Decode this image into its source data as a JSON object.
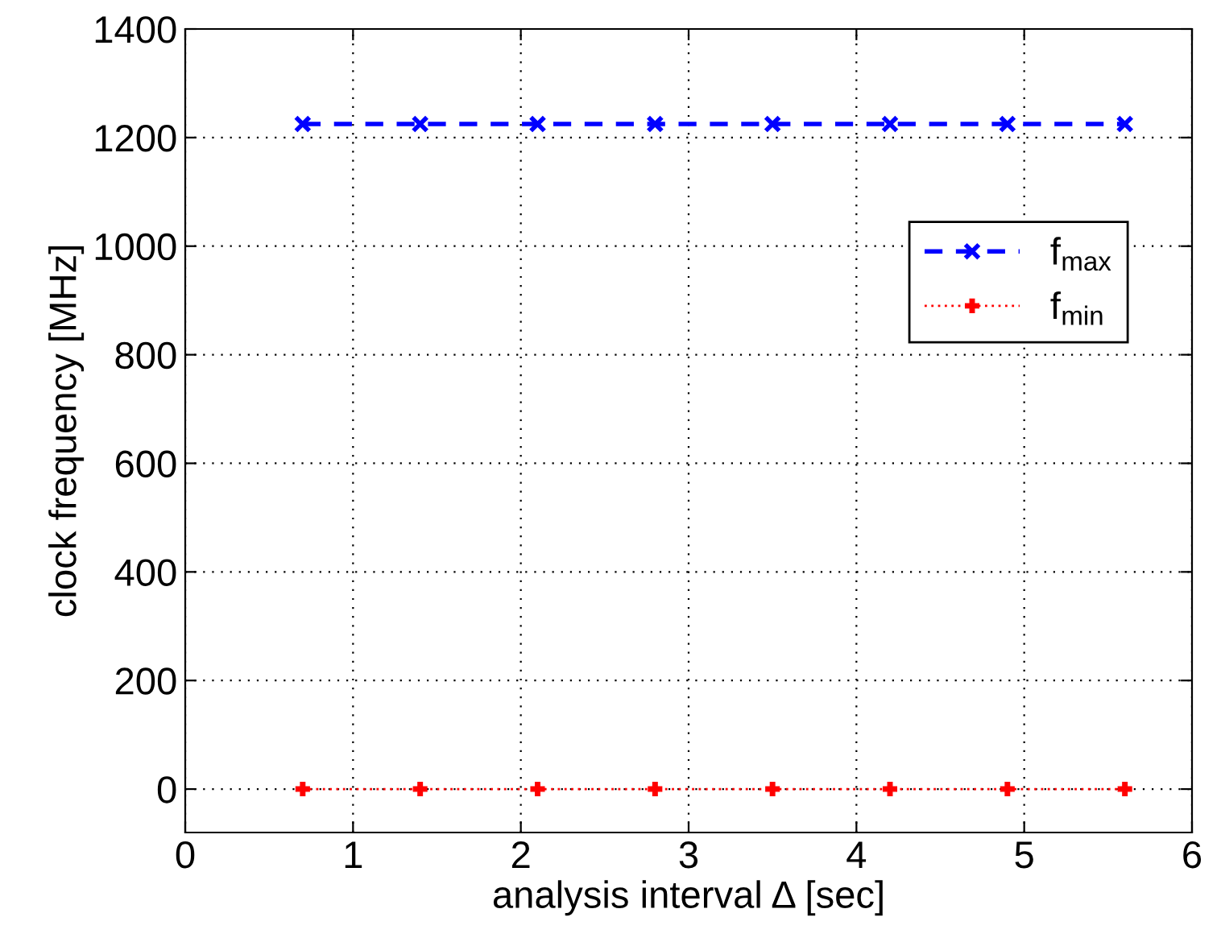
{
  "chart_data": {
    "type": "line",
    "xlabel": "analysis interval Δ [sec]",
    "ylabel": "clock frequency [MHz]",
    "x": [
      0.7,
      1.4,
      2.1,
      2.8,
      3.5,
      4.2,
      4.9,
      5.6
    ],
    "series": [
      {
        "name": "f$_{max}$",
        "color": "#0000ff",
        "values": [
          1225,
          1225,
          1225,
          1225,
          1225,
          1225,
          1225,
          1225
        ],
        "marker": "cross",
        "line_style": "dashed"
      },
      {
        "name": "f$_{min}$",
        "color": "#ff0000",
        "values": [
          0,
          0,
          0,
          0,
          0,
          0,
          0,
          0
        ],
        "marker": "plus",
        "line_style": "dotted"
      }
    ],
    "xlim": [
      0,
      6
    ],
    "xticks": [
      0,
      1,
      2,
      3,
      4,
      5,
      6
    ],
    "ylim": [
      -80,
      1400
    ],
    "yticks": [
      0,
      200,
      400,
      600,
      800,
      1000,
      1200,
      1400
    ],
    "grid": true,
    "legend": "right"
  }
}
